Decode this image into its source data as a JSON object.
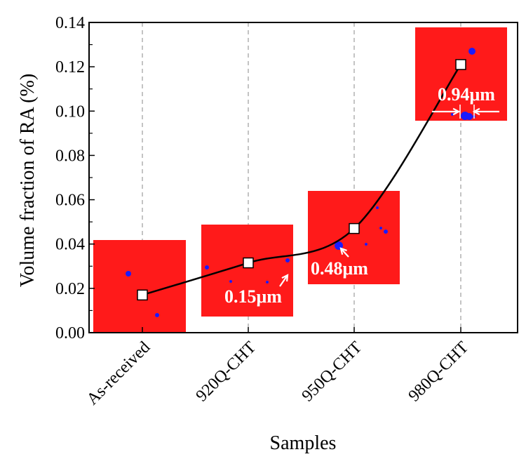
{
  "chart_data": {
    "type": "line",
    "title": "",
    "xlabel": "Samples",
    "ylabel": "Volume fraction of RA (%)",
    "categories": [
      "As-received",
      "920Q-CHT",
      "950Q-CHT",
      "980Q-CHT"
    ],
    "values": [
      0.017,
      0.0315,
      0.047,
      0.121
    ],
    "ylim": [
      0,
      0.14
    ],
    "yticks": [
      "0.00",
      "0.02",
      "0.04",
      "0.06",
      "0.08",
      "0.10",
      "0.12",
      "0.14"
    ],
    "grid": "vertical dashed at categories",
    "annotations": [
      "0.15μm",
      "0.48μm",
      "0.94μm"
    ],
    "colors": {
      "inset": "#ff1a1a",
      "particle": "#1a1aff",
      "line": "#000000",
      "grid": "#888888"
    }
  }
}
